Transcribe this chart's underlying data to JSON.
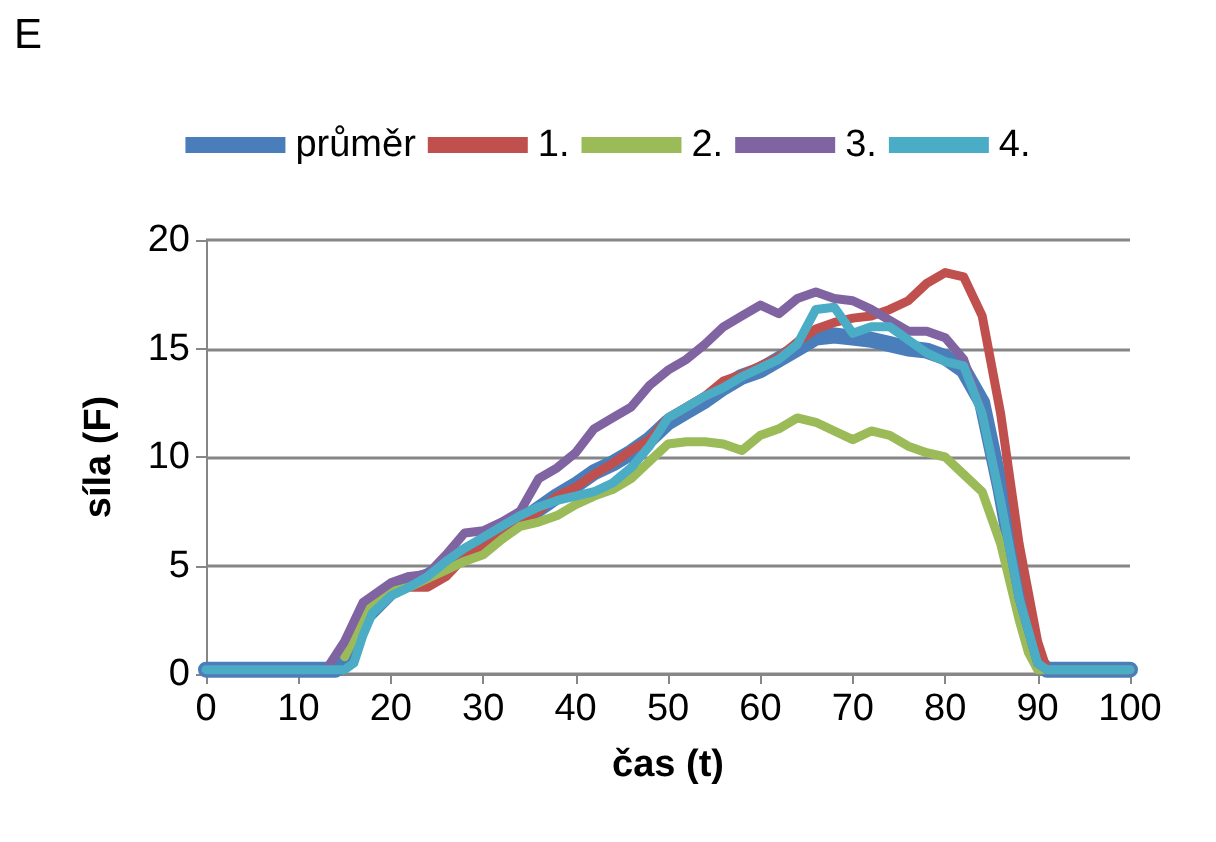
{
  "chart_data": {
    "type": "line",
    "title": "E",
    "xlabel": "čas (t)",
    "ylabel": "síla (F)",
    "xlim": [
      0,
      100
    ],
    "xticks": [
      0,
      10,
      20,
      30,
      40,
      50,
      60,
      70,
      80,
      90,
      100
    ],
    "ylim": [
      0,
      20
    ],
    "yticks": [
      0,
      5,
      10,
      15,
      20
    ],
    "grid": "y",
    "legend": "top",
    "marker": "none",
    "line_style": "solid",
    "series": [
      {
        "name": "průměr",
        "color": "#4a7ebb",
        "x": [
          0,
          5,
          10,
          14,
          15,
          17,
          20,
          22,
          24,
          26,
          28,
          30,
          32,
          34,
          36,
          38,
          40,
          42,
          44,
          46,
          48,
          50,
          52,
          54,
          56,
          58,
          60,
          62,
          64,
          66,
          68,
          70,
          72,
          74,
          76,
          78,
          80,
          82,
          84,
          86,
          88,
          90,
          91,
          95,
          100
        ],
        "values": [
          0.2,
          0.2,
          0.2,
          0.2,
          0.6,
          2.5,
          3.8,
          4.2,
          4.5,
          5,
          5.6,
          6,
          6.6,
          7,
          7.6,
          8.2,
          8.7,
          9.3,
          9.7,
          10.2,
          10.8,
          11.6,
          12.1,
          12.6,
          13.2,
          13.7,
          14,
          14.5,
          15,
          15.5,
          15.6,
          15.5,
          15.4,
          15.2,
          15,
          14.9,
          14.6,
          14,
          12.5,
          8.5,
          3.8,
          0.6,
          0.2,
          0.2,
          0.2
        ]
      },
      {
        "name": "1.",
        "color": "#c0504d",
        "x": [
          20,
          22,
          24,
          26,
          28,
          30,
          32,
          34,
          36,
          38,
          40,
          42,
          44,
          46,
          48,
          50,
          52,
          54,
          56,
          58,
          60,
          62,
          64,
          66,
          68,
          70,
          72,
          74,
          76,
          78,
          80,
          82,
          84,
          86,
          88,
          90,
          91,
          95,
          100
        ],
        "values": [
          3.8,
          4,
          4,
          4.5,
          5.4,
          5.8,
          6.5,
          7,
          7.5,
          8.2,
          8.6,
          9.2,
          9.7,
          10.3,
          10.8,
          11.8,
          12.3,
          12.8,
          13.5,
          13.8,
          14.2,
          14.6,
          15.3,
          15.9,
          16.2,
          16.4,
          16.5,
          16.8,
          17.2,
          18,
          18.5,
          18.3,
          16.5,
          12,
          6,
          1.5,
          0.2,
          0.2,
          0.2
        ]
      },
      {
        "name": "2.",
        "color": "#9bbb59",
        "x": [
          15,
          17,
          18,
          20,
          22,
          24,
          26,
          28,
          30,
          32,
          34,
          36,
          38,
          40,
          42,
          44,
          46,
          48,
          50,
          52,
          54,
          56,
          58,
          60,
          62,
          64,
          66,
          68,
          70,
          72,
          74,
          76,
          78,
          80,
          82,
          84,
          86,
          88,
          89,
          90,
          95,
          100
        ],
        "values": [
          0.8,
          2.5,
          3.2,
          3.8,
          4,
          4.4,
          4.8,
          5.2,
          5.5,
          6.2,
          6.8,
          7,
          7.3,
          7.8,
          8.2,
          8.5,
          9,
          9.8,
          10.6,
          10.7,
          10.7,
          10.6,
          10.3,
          11,
          11.3,
          11.8,
          11.6,
          11.2,
          10.8,
          11.2,
          11,
          10.5,
          10.2,
          10,
          9.2,
          8.4,
          6,
          2.5,
          1,
          0.2,
          0.2,
          0.2
        ]
      },
      {
        "name": "3.",
        "color": "#8064a2",
        "x": [
          0,
          5,
          10,
          13,
          15,
          17,
          18,
          20,
          22,
          24,
          26,
          28,
          30,
          32,
          34,
          36,
          38,
          40,
          42,
          44,
          46,
          48,
          50,
          52,
          54,
          56,
          58,
          60,
          62,
          64,
          66,
          68,
          70,
          72,
          74,
          76,
          78,
          80,
          82,
          84,
          86,
          88,
          90,
          91,
          95,
          100
        ],
        "values": [
          0.2,
          0.2,
          0.2,
          0.2,
          1.5,
          3.3,
          3.6,
          4.2,
          4.5,
          4.6,
          5.5,
          6.5,
          6.6,
          7,
          7.5,
          9,
          9.5,
          10.2,
          11.3,
          11.8,
          12.3,
          13.3,
          14,
          14.5,
          15.2,
          16,
          16.5,
          17,
          16.6,
          17.3,
          17.6,
          17.3,
          17.2,
          16.8,
          16.3,
          15.8,
          15.8,
          15.5,
          14.5,
          12,
          8,
          3.5,
          0.5,
          0.2,
          0.2,
          0.2
        ]
      },
      {
        "name": "4.",
        "color": "#4bacc6",
        "x": [
          0,
          5,
          10,
          15,
          16,
          17,
          18,
          20,
          22,
          24,
          26,
          28,
          30,
          32,
          34,
          36,
          38,
          40,
          42,
          44,
          46,
          48,
          50,
          52,
          54,
          56,
          58,
          60,
          62,
          64,
          66,
          68,
          70,
          72,
          74,
          76,
          78,
          80,
          82,
          84,
          86,
          88,
          90,
          91,
          95,
          100
        ],
        "values": [
          0.2,
          0.2,
          0.2,
          0.2,
          0.5,
          1.8,
          2.8,
          3.6,
          4,
          4.5,
          5.2,
          5.8,
          6.3,
          6.8,
          7.3,
          7.7,
          8,
          8.2,
          8.4,
          8.8,
          9.5,
          10.5,
          11.8,
          12.3,
          12.8,
          13.2,
          13.7,
          14.1,
          14.5,
          15.2,
          16.8,
          16.9,
          15.7,
          16,
          16,
          15.4,
          14.8,
          14.4,
          14.2,
          12,
          8,
          3.5,
          0.5,
          0.2,
          0.2,
          0.2
        ]
      }
    ]
  }
}
